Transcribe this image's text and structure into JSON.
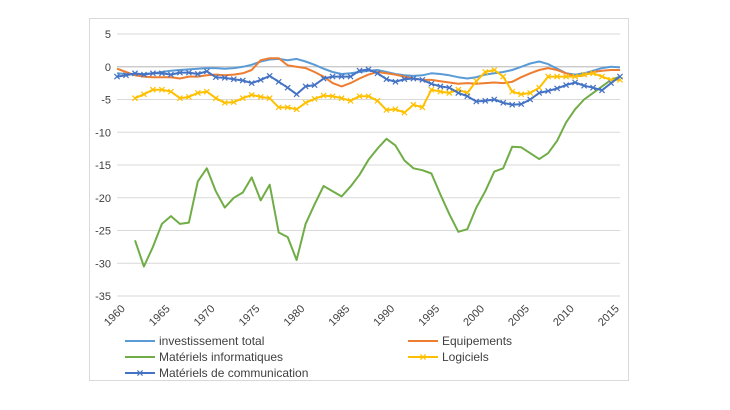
{
  "chart_data": {
    "type": "line",
    "title": "",
    "xlabel": "",
    "ylabel": "",
    "xlim": [
      1960,
      2016
    ],
    "ylim": [
      -35,
      5
    ],
    "grid": true,
    "legend_position": "bottom",
    "x_ticks": [
      1960,
      1965,
      1970,
      1975,
      1980,
      1985,
      1990,
      1995,
      2000,
      2005,
      2010,
      2015
    ],
    "y_ticks": [
      5,
      0,
      -5,
      -10,
      -15,
      -20,
      -25,
      -30,
      -35
    ],
    "series": [
      {
        "name": "investissement total",
        "color": "#5b9bd5",
        "marker": "none",
        "x": [
          1960,
          1961,
          1962,
          1963,
          1964,
          1965,
          1966,
          1967,
          1968,
          1969,
          1970,
          1971,
          1972,
          1973,
          1974,
          1975,
          1976,
          1977,
          1978,
          1979,
          1980,
          1981,
          1982,
          1983,
          1984,
          1985,
          1986,
          1987,
          1988,
          1989,
          1990,
          1991,
          1992,
          1993,
          1994,
          1995,
          1996,
          1997,
          1998,
          1999,
          2000,
          2001,
          2002,
          2003,
          2004,
          2005,
          2006,
          2007,
          2008,
          2009,
          2010,
          2011,
          2012,
          2013,
          2014,
          2015,
          2016
        ],
        "y": [
          -1.0,
          -1.1,
          -1.2,
          -1.1,
          -1.0,
          -0.8,
          -0.6,
          -0.5,
          -0.4,
          -0.3,
          -0.2,
          -0.2,
          -0.3,
          -0.2,
          0.0,
          0.3,
          0.8,
          1.1,
          1.2,
          1.0,
          1.2,
          0.8,
          0.3,
          -0.3,
          -0.8,
          -1.1,
          -1.0,
          -0.8,
          -0.6,
          -0.5,
          -0.8,
          -1.1,
          -1.3,
          -1.4,
          -1.3,
          -1.0,
          -1.1,
          -1.3,
          -1.6,
          -1.8,
          -1.6,
          -1.2,
          -1.0,
          -0.8,
          -0.5,
          0.0,
          0.5,
          0.8,
          0.4,
          -0.3,
          -1.0,
          -1.2,
          -1.0,
          -0.6,
          -0.2,
          0.0,
          -0.1
        ]
      },
      {
        "name": "Equipements",
        "color": "#ed7d31",
        "marker": "none",
        "x": [
          1960,
          1961,
          1962,
          1963,
          1964,
          1965,
          1966,
          1967,
          1968,
          1969,
          1970,
          1971,
          1972,
          1973,
          1974,
          1975,
          1976,
          1977,
          1978,
          1979,
          1980,
          1981,
          1982,
          1983,
          1984,
          1985,
          1986,
          1987,
          1988,
          1989,
          1990,
          1991,
          1992,
          1993,
          1994,
          1995,
          1996,
          1997,
          1998,
          1999,
          2000,
          2001,
          2002,
          2003,
          2004,
          2005,
          2006,
          2007,
          2008,
          2009,
          2010,
          2011,
          2012,
          2013,
          2014,
          2015,
          2016
        ],
        "y": [
          -0.3,
          -0.8,
          -1.3,
          -1.5,
          -1.6,
          -1.6,
          -1.6,
          -1.8,
          -1.5,
          -1.5,
          -1.3,
          -1.2,
          -1.3,
          -1.2,
          -1.0,
          -0.5,
          1.0,
          1.3,
          1.3,
          0.2,
          0.0,
          -0.2,
          -0.8,
          -1.5,
          -2.5,
          -3.0,
          -2.5,
          -1.8,
          -1.2,
          -0.8,
          -1.0,
          -1.2,
          -1.5,
          -1.8,
          -2.0,
          -2.0,
          -2.2,
          -2.4,
          -2.6,
          -2.5,
          -2.6,
          -2.5,
          -2.4,
          -2.5,
          -2.3,
          -1.6,
          -1.0,
          -0.5,
          -0.2,
          -0.5,
          -1.0,
          -1.5,
          -1.3,
          -0.8,
          -0.6,
          -0.5,
          -0.5
        ]
      },
      {
        "name": "Matériels informatiques",
        "color": "#70ad47",
        "marker": "none",
        "x": [
          1962,
          1963,
          1964,
          1965,
          1966,
          1967,
          1968,
          1969,
          1970,
          1971,
          1972,
          1973,
          1974,
          1975,
          1976,
          1977,
          1978,
          1979,
          1980,
          1981,
          1982,
          1983,
          1984,
          1985,
          1986,
          1987,
          1988,
          1989,
          1990,
          1991,
          1992,
          1993,
          1994,
          1995,
          1996,
          1997,
          1998,
          1999,
          2000,
          2001,
          2002,
          2003,
          2004,
          2005,
          2006,
          2007,
          2008,
          2009,
          2010,
          2011,
          2012,
          2013,
          2014,
          2015,
          2016
        ],
        "y": [
          -26.5,
          -30.5,
          -27.5,
          -24.0,
          -22.8,
          -24.0,
          -23.8,
          -17.5,
          -15.5,
          -19.0,
          -21.5,
          -20.0,
          -19.2,
          -16.9,
          -20.4,
          -18.0,
          -25.3,
          -26.0,
          -29.5,
          -24.0,
          -21.0,
          -18.2,
          -19.0,
          -19.8,
          -18.3,
          -16.5,
          -14.2,
          -12.5,
          -11.0,
          -12.0,
          -14.3,
          -15.5,
          -15.8,
          -16.3,
          -19.5,
          -22.5,
          -25.2,
          -24.8,
          -21.5,
          -19.0,
          -16.0,
          -15.5,
          -12.2,
          -12.3,
          -13.2,
          -14.1,
          -13.2,
          -11.3,
          -8.5,
          -6.5,
          -5.0,
          -4.0,
          -3.0,
          -2.0,
          -1.5
        ]
      },
      {
        "name": "Logiciels",
        "color": "#ffc000",
        "marker": "x",
        "x": [
          1962,
          1963,
          1964,
          1965,
          1966,
          1967,
          1968,
          1969,
          1970,
          1971,
          1972,
          1973,
          1974,
          1975,
          1976,
          1977,
          1978,
          1979,
          1980,
          1981,
          1982,
          1983,
          1984,
          1985,
          1986,
          1987,
          1988,
          1989,
          1990,
          1991,
          1992,
          1993,
          1994,
          1995,
          1996,
          1997,
          1998,
          1999,
          2000,
          2001,
          2002,
          2003,
          2004,
          2005,
          2006,
          2007,
          2008,
          2009,
          2010,
          2011,
          2012,
          2013,
          2014,
          2015,
          2016
        ],
        "y": [
          -4.8,
          -4.2,
          -3.5,
          -3.5,
          -3.8,
          -4.8,
          -4.6,
          -4.0,
          -3.8,
          -4.8,
          -5.5,
          -5.4,
          -4.8,
          -4.3,
          -4.6,
          -4.8,
          -6.2,
          -6.2,
          -6.5,
          -5.5,
          -4.9,
          -4.4,
          -4.5,
          -4.8,
          -5.2,
          -4.5,
          -4.5,
          -5.2,
          -6.6,
          -6.5,
          -7.0,
          -5.8,
          -6.2,
          -3.5,
          -3.8,
          -4.0,
          -3.5,
          -4.0,
          -2.2,
          -0.8,
          -0.5,
          -1.5,
          -3.8,
          -4.2,
          -4.0,
          -3.2,
          -1.5,
          -1.5,
          -1.5,
          -1.5,
          -1.2,
          -1.0,
          -1.5,
          -2.0,
          -2.0
        ]
      },
      {
        "name": "Matériels de communication",
        "color": "#4472c4",
        "marker": "x",
        "x": [
          1960,
          1961,
          1962,
          1963,
          1964,
          1965,
          1966,
          1967,
          1968,
          1969,
          1970,
          1971,
          1972,
          1973,
          1974,
          1975,
          1976,
          1977,
          1978,
          1979,
          1980,
          1981,
          1982,
          1983,
          1984,
          1985,
          1986,
          1987,
          1988,
          1989,
          1990,
          1991,
          1992,
          1993,
          1994,
          1995,
          1996,
          1997,
          1998,
          1999,
          2000,
          2001,
          2002,
          2003,
          2004,
          2005,
          2006,
          2007,
          2008,
          2009,
          2010,
          2011,
          2012,
          2013,
          2014,
          2015,
          2016
        ],
        "y": [
          -1.5,
          -1.3,
          -1.0,
          -1.2,
          -1.0,
          -1.0,
          -1.2,
          -0.9,
          -0.9,
          -1.1,
          -0.7,
          -1.6,
          -1.7,
          -1.9,
          -2.1,
          -2.5,
          -2.0,
          -1.4,
          -2.3,
          -3.2,
          -4.2,
          -3.0,
          -2.8,
          -1.8,
          -1.5,
          -1.5,
          -1.5,
          -0.6,
          -0.4,
          -1.0,
          -1.9,
          -2.3,
          -1.9,
          -1.8,
          -2.0,
          -2.6,
          -3.0,
          -3.2,
          -4.0,
          -4.5,
          -5.3,
          -5.2,
          -5.0,
          -5.5,
          -5.8,
          -5.7,
          -5.0,
          -4.0,
          -3.7,
          -3.3,
          -2.8,
          -2.4,
          -2.9,
          -3.2,
          -3.6,
          -2.5,
          -1.5
        ]
      }
    ]
  }
}
